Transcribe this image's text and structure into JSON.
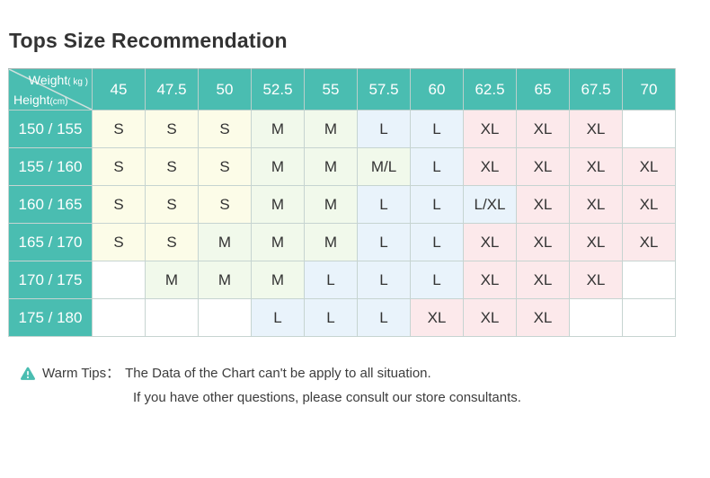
{
  "title": "Tops Size Recommendation",
  "chart_data": {
    "type": "table",
    "title": "Tops Size Recommendation",
    "col_axis": {
      "label": "Weight",
      "unit": "( kg )"
    },
    "row_axis": {
      "label": "Height",
      "unit": "(cm)"
    },
    "weights_kg": [
      "45",
      "47.5",
      "50",
      "52.5",
      "55",
      "57.5",
      "60",
      "62.5",
      "65",
      "67.5",
      "70"
    ],
    "rows": [
      {
        "height_cm": "150 / 155",
        "sizes": [
          "S",
          "S",
          "S",
          "M",
          "M",
          "L",
          "L",
          "XL",
          "XL",
          "XL",
          ""
        ]
      },
      {
        "height_cm": "155 / 160",
        "sizes": [
          "S",
          "S",
          "S",
          "M",
          "M",
          "M/L",
          "L",
          "XL",
          "XL",
          "XL",
          "XL"
        ]
      },
      {
        "height_cm": "160 / 165",
        "sizes": [
          "S",
          "S",
          "S",
          "M",
          "M",
          "L",
          "L",
          "L/XL",
          "XL",
          "XL",
          "XL"
        ]
      },
      {
        "height_cm": "165 / 170",
        "sizes": [
          "S",
          "S",
          "M",
          "M",
          "M",
          "L",
          "L",
          "XL",
          "XL",
          "XL",
          "XL"
        ]
      },
      {
        "height_cm": "170 / 175",
        "sizes": [
          "",
          "M",
          "M",
          "M",
          "L",
          "L",
          "L",
          "XL",
          "XL",
          "XL",
          ""
        ]
      },
      {
        "height_cm": "175 / 180",
        "sizes": [
          "",
          "",
          "",
          "L",
          "L",
          "L",
          "XL",
          "XL",
          "XL",
          "",
          ""
        ]
      }
    ]
  },
  "tips": {
    "icon": "warning-triangle-icon",
    "label": "Warm Tips：",
    "line1": "The Data of the Chart can't be apply to all situation.",
    "line2": "If you have other questions, please consult our store consultants."
  },
  "colors": {
    "header_teal": "#4abdb1",
    "grid_line": "#c6d4d1",
    "title_text": "#333333",
    "cell_text": "#333333",
    "size_fill": {
      "S": "#fcfce8",
      "M": "#f1f9eb",
      "M/L": "#f1f9eb",
      "L": "#e9f3fb",
      "L/XL": "#e9f3fb",
      "XL": "#fce9eb",
      "": "#ffffff"
    }
  }
}
